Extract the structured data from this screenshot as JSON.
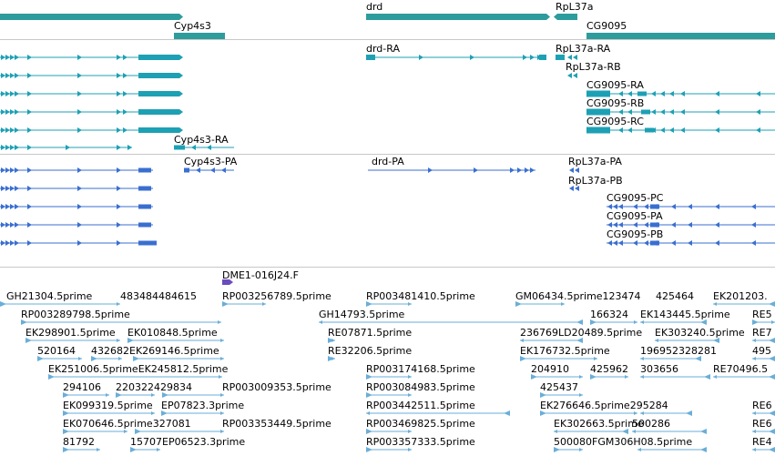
{
  "gene_track": {
    "labels": [
      "drd",
      "RpL37a",
      "Cyp4s3",
      "CG9095"
    ],
    "color": "#2e9c9c"
  },
  "transcript_track": {
    "labels": [
      "drd-RA",
      "RpL37a-RA",
      "RpL37a-RB",
      "CG9095-RA",
      "CG9095-RB",
      "CG9095-RC",
      "Cyp4s3-RA"
    ],
    "color": "#1ea0b4"
  },
  "protein_track": {
    "labels": [
      "Cyp4s3-PA",
      "drd-PA",
      "RpL37a-PA",
      "RpL37a-PB",
      "CG9095-PC",
      "CG9095-PA",
      "CG9095-PB"
    ],
    "color": "#3a6fd0"
  },
  "clone_track": {
    "labels": [
      "DME1-016J24.F"
    ],
    "color": "#6a4bc0"
  },
  "est_track": {
    "color": "#6aaed8",
    "labels": [
      "GH21304.5prime",
      "483484484615",
      "RP003256789.5prime",
      "RP003481410.5prime",
      "GM06434.5prime123474",
      "425464",
      "EK201203.",
      "RP003289798.5prime",
      "GH14793.5prime",
      "166324",
      "EK143445.5prime",
      "RE5",
      "EK298901.5prime",
      "EK010848.5prime",
      "RE07871.5prime",
      "236769LD20489.5prime",
      "EK303240.5prime",
      "RE7",
      "520164",
      "432682EK269146.5prime",
      "RE32206.5prime",
      "EK176732.5prime",
      "196952328281",
      "495",
      "EK251006.5primeEK245812.5prime",
      "RP003174168.5prime",
      "204910",
      "425962",
      "303656",
      "RE70496.5",
      "294106",
      "220322429834",
      "RP003009353.5prime",
      "RP003084983.5prime",
      "425437",
      "EK099319.5prime",
      "EP07823.3prime",
      "RP003442511.5prime",
      "EK276646.5prime295284",
      "RE6",
      "EK070646.5prime327081",
      "RP003353449.5prime",
      "RP003469825.5prime",
      "EK302663.5prime",
      "500286",
      "RE6",
      "81792",
      "15707EP06523.3prime",
      "RP003357333.5prime",
      "500080FGM306H08.5prime",
      "RE4"
    ]
  }
}
